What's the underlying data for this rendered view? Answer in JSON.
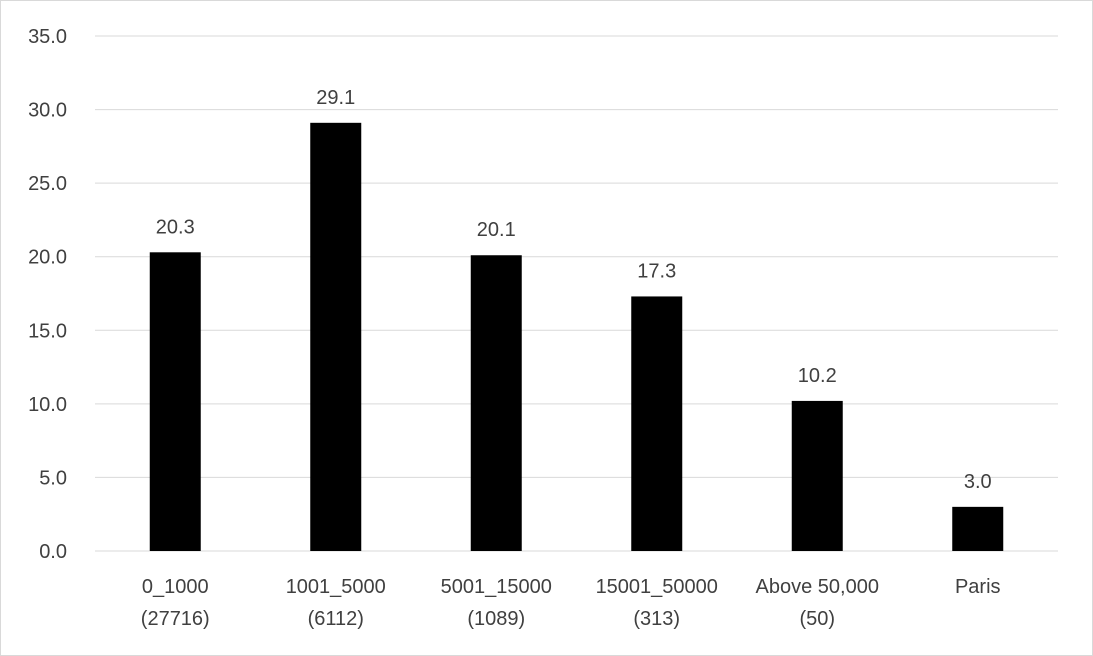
{
  "chart_data": {
    "type": "bar",
    "title": "",
    "xlabel": "",
    "ylabel": "",
    "ylim": [
      0,
      35
    ],
    "ytick_step": 5,
    "ytick_decimals": 1,
    "grid": true,
    "bar_color": "#000000",
    "grid_color": "#d9d9d9",
    "text_color": "#404040",
    "categories": [
      [
        "0_1000",
        "(27716)"
      ],
      [
        "1001_5000",
        "(6112)"
      ],
      [
        "5001_15000",
        "(1089)"
      ],
      [
        "15001_50000",
        "(313)"
      ],
      [
        "Above 50,000",
        "(50)"
      ],
      [
        "Paris",
        ""
      ]
    ],
    "values": [
      20.3,
      29.1,
      20.1,
      17.3,
      10.2,
      3.0
    ],
    "data_labels": [
      "20.3",
      "29.1",
      "20.1",
      "17.3",
      "10.2",
      "3.0"
    ],
    "ytick_labels": [
      "0.0",
      "5.0",
      "10.0",
      "15.0",
      "20.0",
      "25.0",
      "30.0",
      "35.0"
    ]
  }
}
